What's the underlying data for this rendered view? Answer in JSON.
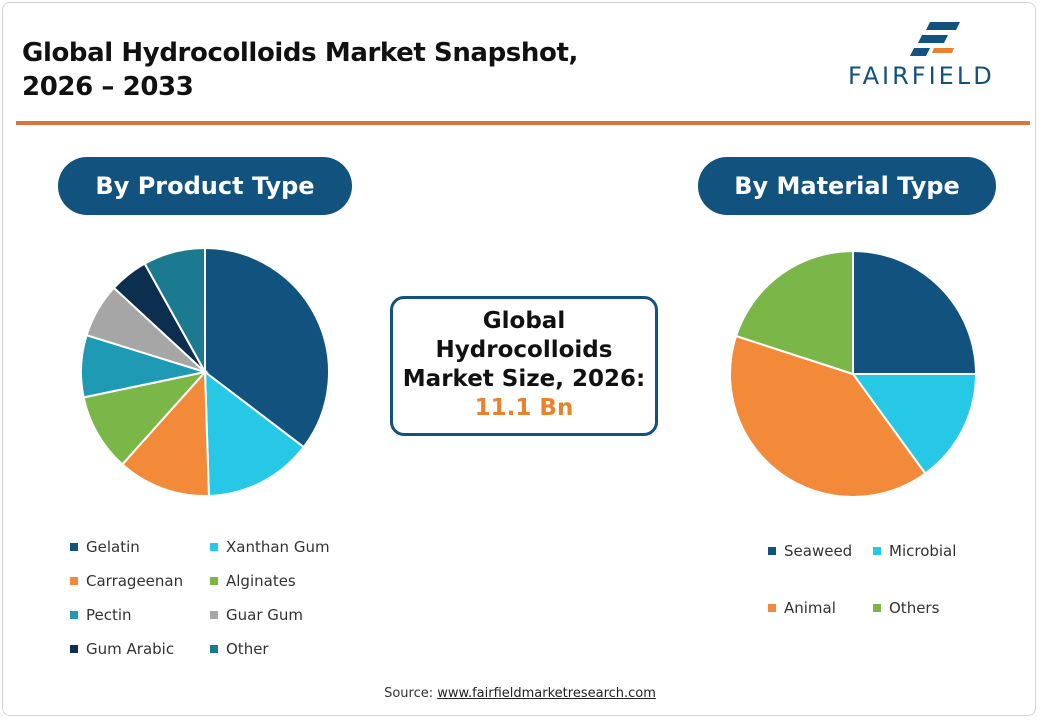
{
  "header": {
    "title_line1": "Global Hydrocolloids Market Snapshot,",
    "title_line2": "2026 – 2033",
    "logo_text": "FAIRFIELD"
  },
  "center": {
    "label_line1": "Global",
    "label_line2": "Hydrocolloids",
    "label_line3": "Market Size, 2026:",
    "value": "11.1 Bn"
  },
  "source": {
    "prefix": "Source: ",
    "link": "www.fairfieldmarketresearch.com"
  },
  "chart_data": [
    {
      "type": "pie",
      "title": "By Product Type",
      "categories": [
        "Gelatin",
        "Xanthan Gum",
        "Carrageenan",
        "Alginates",
        "Pectin",
        "Guar Gum",
        "Gum Arabic",
        "Other"
      ],
      "values": [
        35,
        14,
        12,
        10,
        8,
        7,
        5,
        8
      ],
      "colors": [
        "#12527f",
        "#27c8e6",
        "#f38a39",
        "#7ab648",
        "#1f9ab5",
        "#a6a6a6",
        "#0d2f4f",
        "#1c7a90"
      ]
    },
    {
      "type": "pie",
      "title": "By Material Type",
      "categories": [
        "Seaweed",
        "Microbial",
        "Animal",
        "Others"
      ],
      "values": [
        25,
        15,
        40,
        20
      ],
      "colors": [
        "#12527f",
        "#27c8e6",
        "#f38a39",
        "#7ab648"
      ]
    }
  ]
}
